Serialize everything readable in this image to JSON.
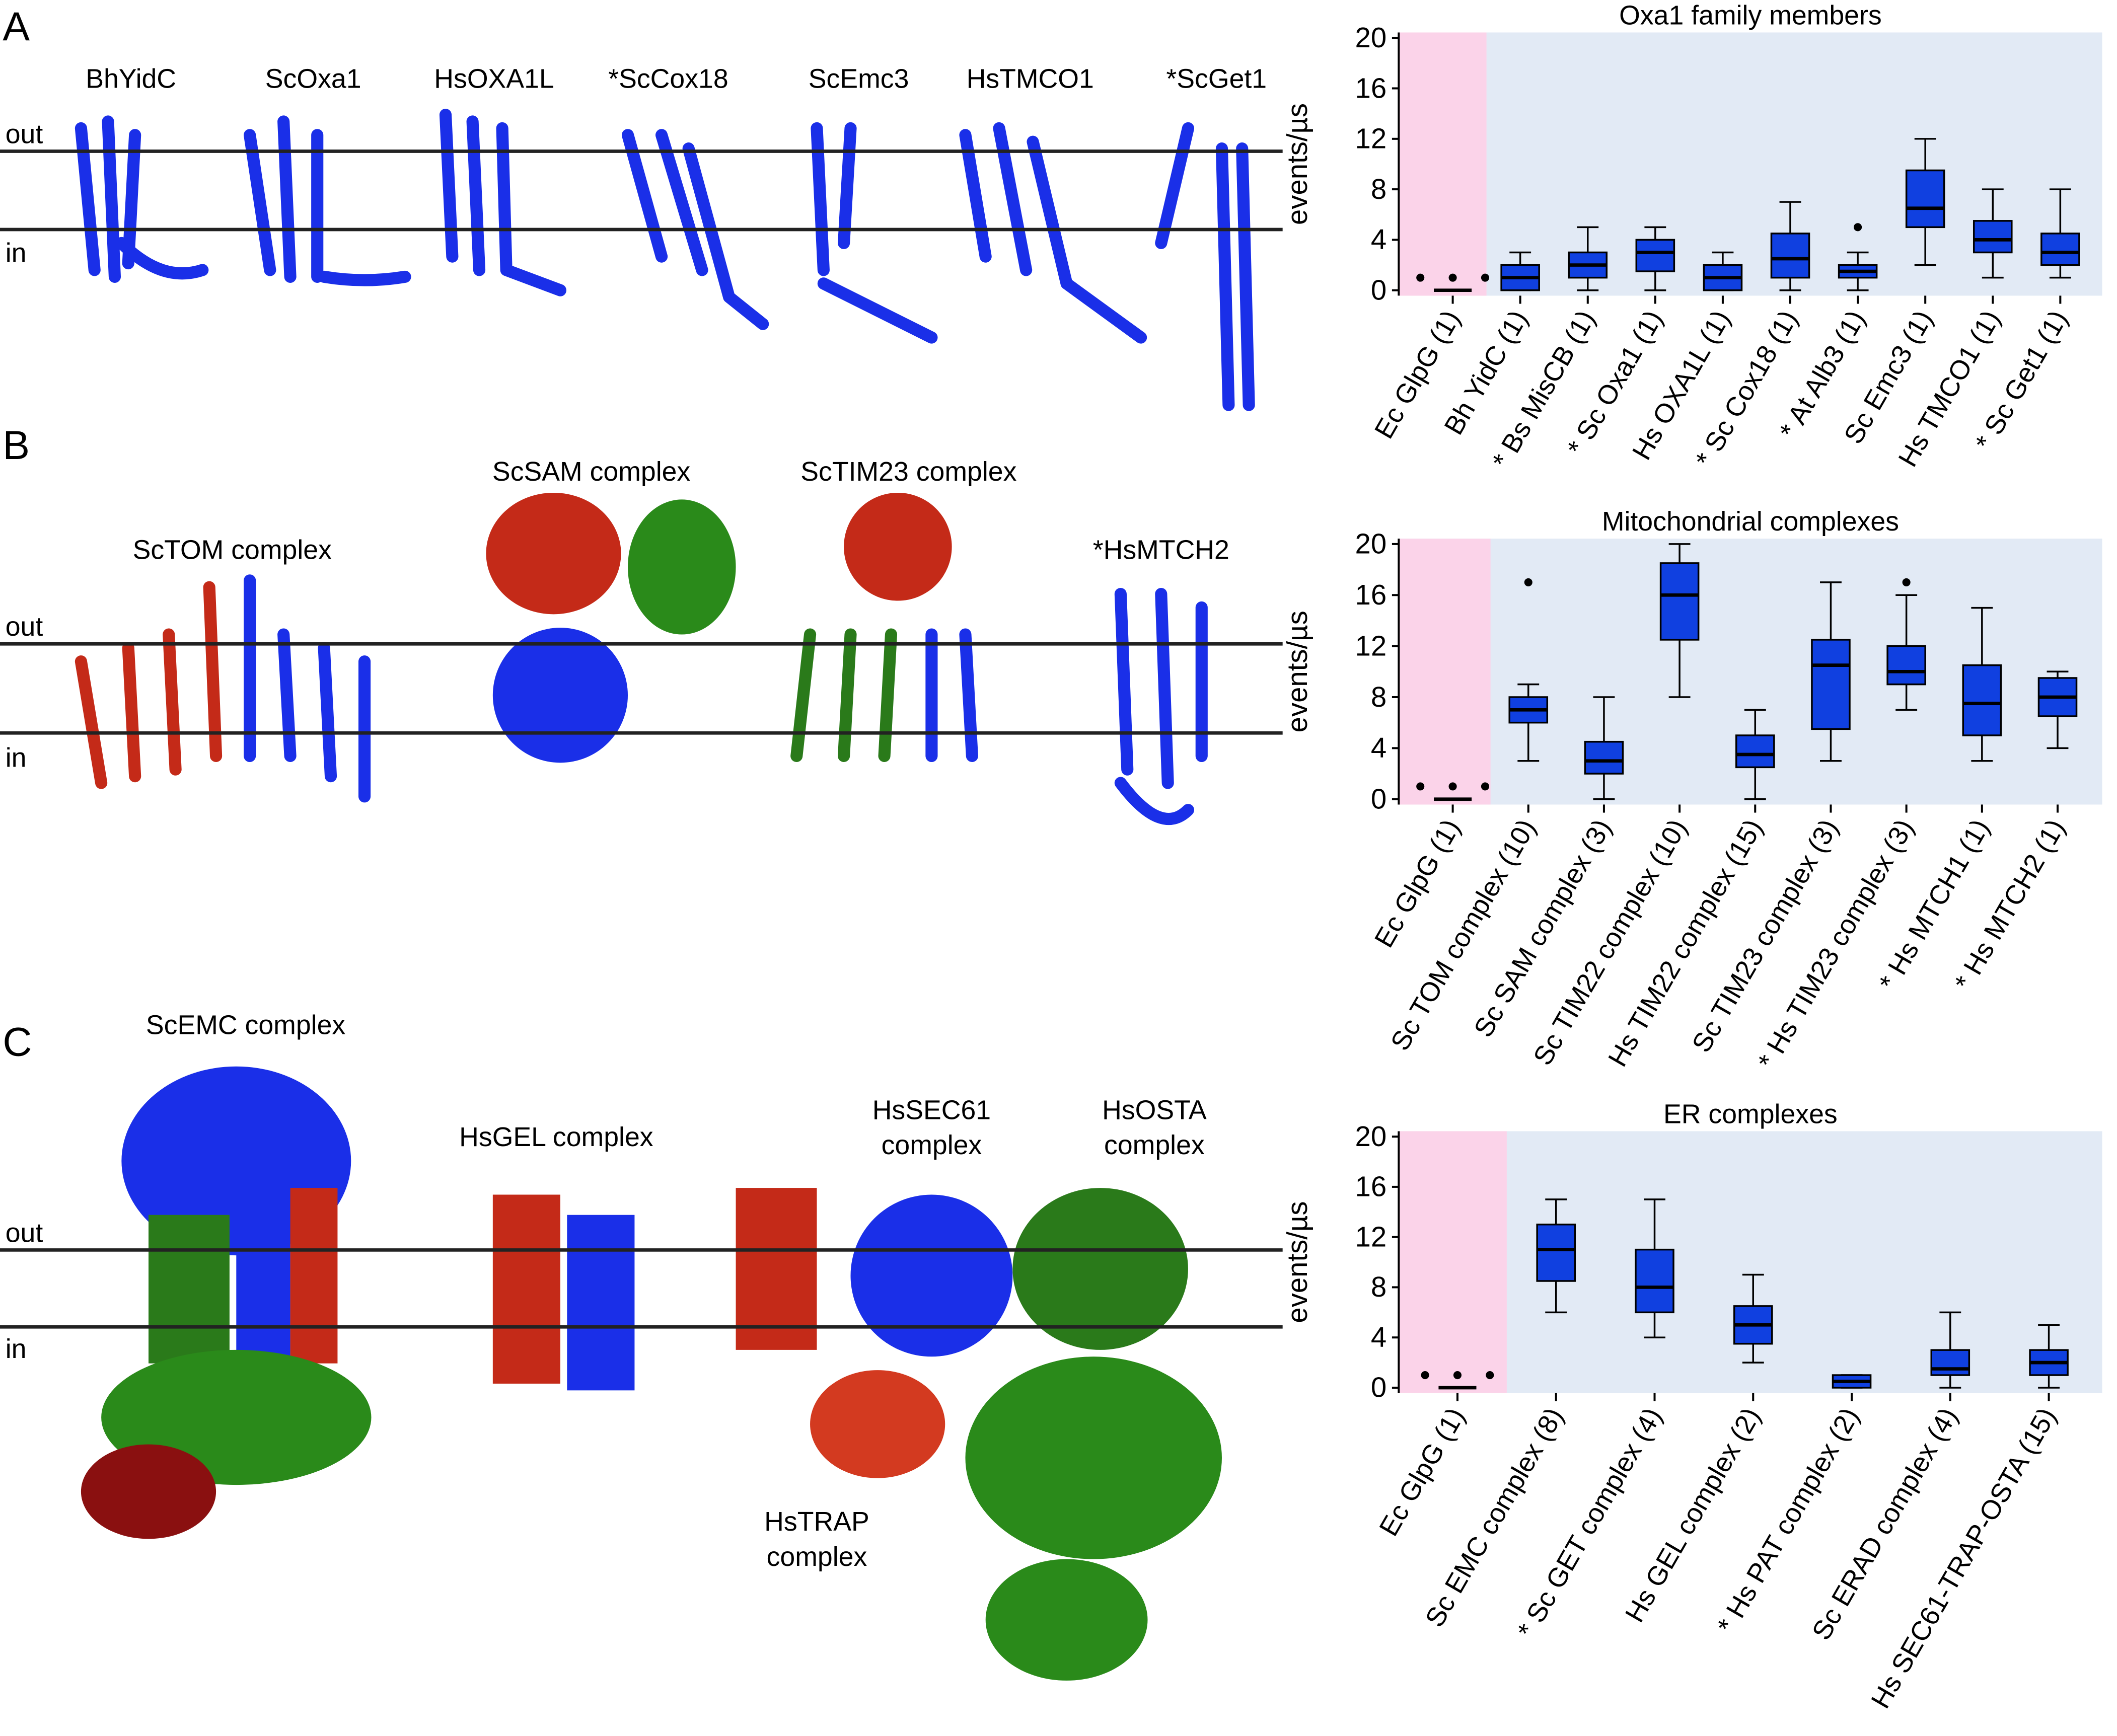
{
  "panels": {
    "A": {
      "letter": "A",
      "out": "out",
      "in": "in",
      "labels": [
        "BhYidC",
        "ScOxa1",
        "HsOXA1L",
        "*ScCox18",
        "ScEmc3",
        "HsTMCO1",
        "*ScGet1"
      ]
    },
    "B": {
      "letter": "B",
      "out": "out",
      "in": "in",
      "labels": [
        "ScTOM complex",
        "ScSAM complex",
        "ScTIM23 complex",
        "*HsMTCH2"
      ]
    },
    "C": {
      "letter": "C",
      "out": "out",
      "in": "in",
      "labels": [
        "ScEMC complex",
        "HsGEL complex",
        "HsSEC61",
        "complex",
        "HsOSTA",
        "complex",
        "HsTRAP",
        "complex"
      ]
    }
  },
  "chart_data": [
    {
      "type": "box",
      "title": "Oxa1 family members",
      "y_label": "events/µs",
      "ylim": [
        0,
        20
      ],
      "yticks": [
        0,
        4,
        8,
        12,
        16,
        20
      ],
      "color": "#1040e0",
      "control_color": "#fbd3e9",
      "background_color": "#e2eaf5",
      "categories": [
        "Ec GlpG (1)",
        "Bh YidC (1)",
        "* Bs MisCB (1)",
        "* Sc Oxa1 (1)",
        "Hs OXA1L (1)",
        "* Sc Cox18 (1)",
        "* At Alb3 (1)",
        "Sc Emc3 (1)",
        "Hs TMCO1 (1)",
        "* Sc Get1 (1)"
      ],
      "min": [
        0,
        0,
        0,
        0,
        0,
        0,
        0,
        2,
        1,
        1
      ],
      "q1": [
        0,
        0,
        1,
        1.5,
        0,
        1,
        1,
        5,
        3,
        2
      ],
      "median": [
        0,
        1,
        2,
        3,
        1,
        2.5,
        1.5,
        6.5,
        4,
        3
      ],
      "q3": [
        0,
        2,
        3,
        4,
        2,
        4.5,
        2,
        9.5,
        5.5,
        4.5
      ],
      "max": [
        0,
        3,
        5,
        5,
        3,
        7,
        3,
        12,
        8,
        8
      ],
      "outliers": [
        [
          1,
          1,
          1
        ],
        [],
        [],
        [],
        [],
        [],
        [
          5
        ],
        [],
        [],
        []
      ]
    },
    {
      "type": "box",
      "title": "Mitochondrial complexes",
      "y_label": "events/µs",
      "ylim": [
        0,
        20
      ],
      "yticks": [
        0,
        4,
        8,
        12,
        16,
        20
      ],
      "color": "#1040e0",
      "control_color": "#fbd3e9",
      "background_color": "#e2eaf5",
      "categories": [
        "Ec GlpG (1)",
        "Sc TOM complex (10)",
        "Sc SAM complex (3)",
        "Sc TIM22 complex (10)",
        "Hs TIM22 complex (15)",
        "Sc TIM23 complex (3)",
        "* Hs TIM23 complex (3)",
        "* Hs MTCH1 (1)",
        "* Hs MTCH2 (1)"
      ],
      "min": [
        0,
        3,
        0,
        8,
        0,
        3,
        7,
        3,
        4
      ],
      "q1": [
        0,
        6,
        2,
        12.5,
        2.5,
        5.5,
        9,
        5,
        6.5
      ],
      "median": [
        0,
        7,
        3,
        16,
        3.5,
        10.5,
        10,
        7.5,
        8
      ],
      "q3": [
        0,
        8,
        4.5,
        18.5,
        5,
        12.5,
        12,
        10.5,
        9.5
      ],
      "max": [
        0,
        9,
        8,
        20,
        7,
        17,
        16,
        15,
        10
      ],
      "outliers": [
        [
          1,
          1,
          1
        ],
        [
          17
        ],
        [],
        [],
        [],
        [],
        [
          17
        ],
        [],
        []
      ]
    },
    {
      "type": "box",
      "title": "ER complexes",
      "y_label": "events/µs",
      "ylim": [
        0,
        20
      ],
      "yticks": [
        0,
        4,
        8,
        12,
        16,
        20
      ],
      "color": "#1040e0",
      "control_color": "#fbd3e9",
      "background_color": "#e2eaf5",
      "categories": [
        "Ec GlpG (1)",
        "Sc EMC complex (8)",
        "* Sc GET complex (4)",
        "Hs GEL complex (2)",
        "* Hs PAT complex (2)",
        "Sc ERAD complex (4)",
        "Hs SEC61-TRAP-OSTA (15)"
      ],
      "min": [
        0,
        6,
        4,
        2,
        0,
        0,
        0
      ],
      "q1": [
        0,
        8.5,
        6,
        3.5,
        0,
        1,
        1
      ],
      "median": [
        0,
        11,
        8,
        5,
        0.5,
        1.5,
        2
      ],
      "q3": [
        0,
        13,
        11,
        6.5,
        1,
        3,
        3
      ],
      "max": [
        0,
        15,
        15,
        9,
        1,
        6,
        5
      ],
      "outliers": [
        [
          1,
          1,
          1
        ],
        [],
        [],
        [],
        [],
        [],
        []
      ]
    }
  ]
}
